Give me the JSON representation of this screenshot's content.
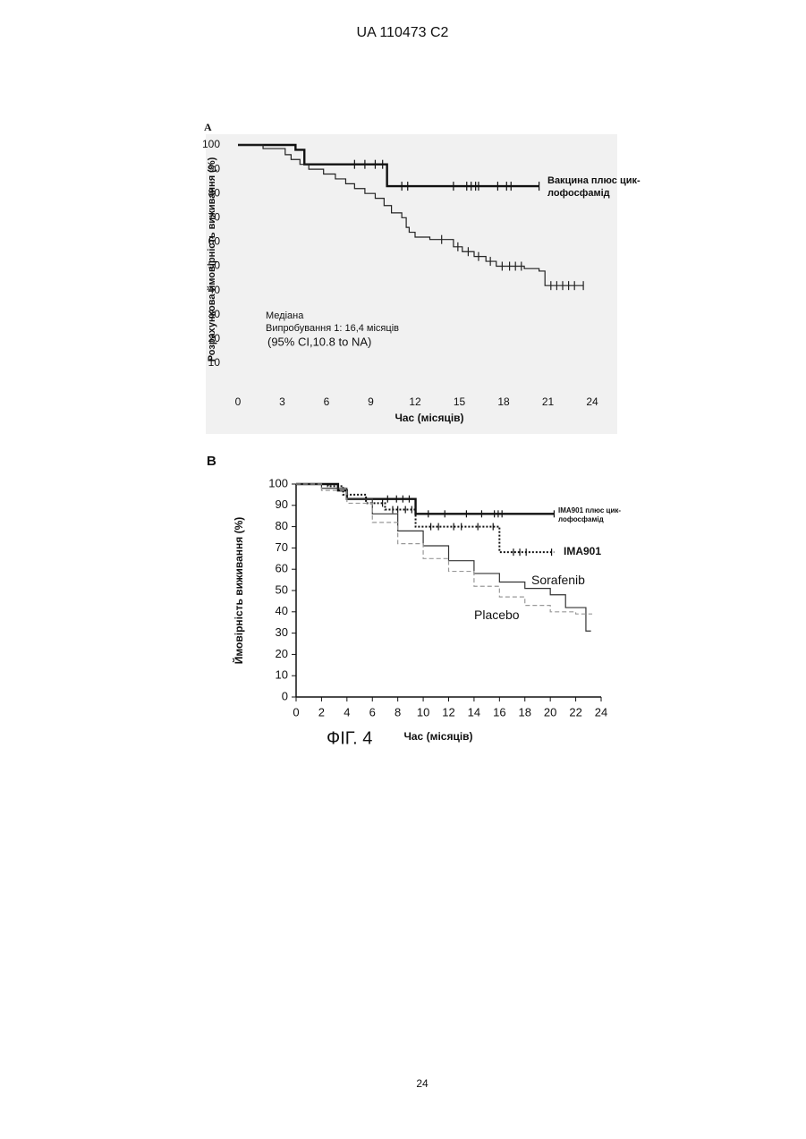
{
  "header": "UA   110473   C2",
  "figure_label": "ФІГ. 4",
  "page_number": "24",
  "chart_data": [
    {
      "type": "step",
      "panel": "A",
      "y_label": "Розрахункова ймовірність виживання (%)",
      "x_label": "Час (місяців)",
      "xlim": [
        0,
        24
      ],
      "xticks": [
        0,
        3,
        6,
        9,
        12,
        15,
        18,
        21,
        24
      ],
      "ylim": [
        0,
        100
      ],
      "yticks": [
        10,
        20,
        30,
        40,
        50,
        60,
        70,
        80,
        90,
        100
      ],
      "annotations": [
        "Медіана",
        "Випробування 1: 16,4 місяців",
        "(95% CI,10.8 to NA)"
      ],
      "series": [
        {
          "name": [
            "Вакцина плюс цик-",
            "лофосфамід"
          ],
          "color": "#111111",
          "style": "solid",
          "width": 2.4,
          "x": [
            0,
            3.9,
            4.5,
            10.1,
            20.4
          ],
          "values": [
            100,
            98,
            92,
            83,
            83
          ],
          "censored_x": [
            7.9,
            8.6,
            9.3,
            9.8,
            11.1,
            11.5,
            14.6,
            15.5,
            15.8,
            16.1,
            16.3,
            17.6,
            18.2,
            18.5,
            20.4
          ]
        },
        {
          "color": "#222222",
          "style": "solid",
          "width": 1.2,
          "x": [
            0,
            1.7,
            3.2,
            3.6,
            4.2,
            4.8,
            5.8,
            6.6,
            7.3,
            7.9,
            8.6,
            9.3,
            9.9,
            10.4,
            11.1,
            11.4,
            11.6,
            12,
            13,
            14.6,
            15.2,
            16,
            16.8,
            17.5,
            19.4,
            20.4,
            20.8,
            23.4
          ],
          "values": [
            100,
            98.5,
            96,
            94,
            92,
            90,
            88,
            86,
            84,
            82,
            80,
            78,
            75,
            72,
            70,
            66,
            64,
            62,
            61,
            58,
            56,
            54,
            52,
            50,
            49,
            48,
            42,
            42
          ],
          "censored_x": [
            13.8,
            14.9,
            15.6,
            16.3,
            17.1,
            17.9,
            18.4,
            18.8,
            19.2,
            21.2,
            21.6,
            22.0,
            22.4,
            22.8,
            23.4
          ]
        }
      ]
    },
    {
      "type": "step",
      "panel": "B",
      "y_label": "Ймовірність виживання (%)",
      "x_label": "Час (місяців)",
      "xlim": [
        0,
        24
      ],
      "xticks": [
        0,
        2,
        4,
        6,
        8,
        10,
        12,
        14,
        16,
        18,
        20,
        22,
        24
      ],
      "ylim": [
        0,
        100
      ],
      "yticks": [
        0,
        10,
        20,
        30,
        40,
        50,
        60,
        70,
        80,
        90,
        100
      ],
      "series": [
        {
          "name": [
            "IMA901 плюс цик-",
            "лофосфамід"
          ],
          "color": "#111111",
          "style": "solid",
          "width": 2.4,
          "x": [
            0,
            3.3,
            4,
            9.4,
            20.3
          ],
          "values": [
            100,
            97,
            93,
            86,
            86
          ],
          "censored_x": [
            7.2,
            7.9,
            8.4,
            8.9,
            10.4,
            11.7,
            13.4,
            14.6,
            15.6,
            15.9,
            16.2,
            20.3
          ]
        },
        {
          "name": [
            "IMA901"
          ],
          "color": "#111111",
          "style": "dotted",
          "width": 2,
          "x": [
            0,
            2.5,
            3.7,
            5.5,
            7,
            9.4,
            16,
            20.3
          ],
          "values": [
            100,
            99,
            95,
            91,
            88,
            80,
            68,
            68
          ],
          "censored_x": [
            6.8,
            7.6,
            8,
            8.6,
            9.1,
            10.6,
            11.2,
            12.4,
            13,
            14.3,
            15.5,
            17.1,
            17.6,
            18.1,
            20.1
          ]
        },
        {
          "name": [
            "Sorafenib"
          ],
          "color": "#333333",
          "style": "solid",
          "width": 1.2,
          "x": [
            0,
            2,
            4,
            6,
            8,
            10,
            12,
            14,
            16,
            18,
            20,
            21.2,
            22.8,
            23.2
          ],
          "values": [
            100,
            98,
            93,
            86,
            78,
            71,
            64,
            58,
            54,
            51,
            48,
            42,
            31,
            31
          ]
        },
        {
          "name": [
            "Placebo"
          ],
          "color": "#999999",
          "style": "dashed",
          "width": 1.2,
          "x": [
            0,
            2,
            4,
            6,
            8,
            10,
            12,
            14,
            16,
            18,
            20,
            22,
            23.3
          ],
          "values": [
            100,
            97,
            91,
            82,
            72,
            65,
            59,
            52,
            47,
            43,
            40,
            39,
            39
          ]
        }
      ]
    }
  ]
}
